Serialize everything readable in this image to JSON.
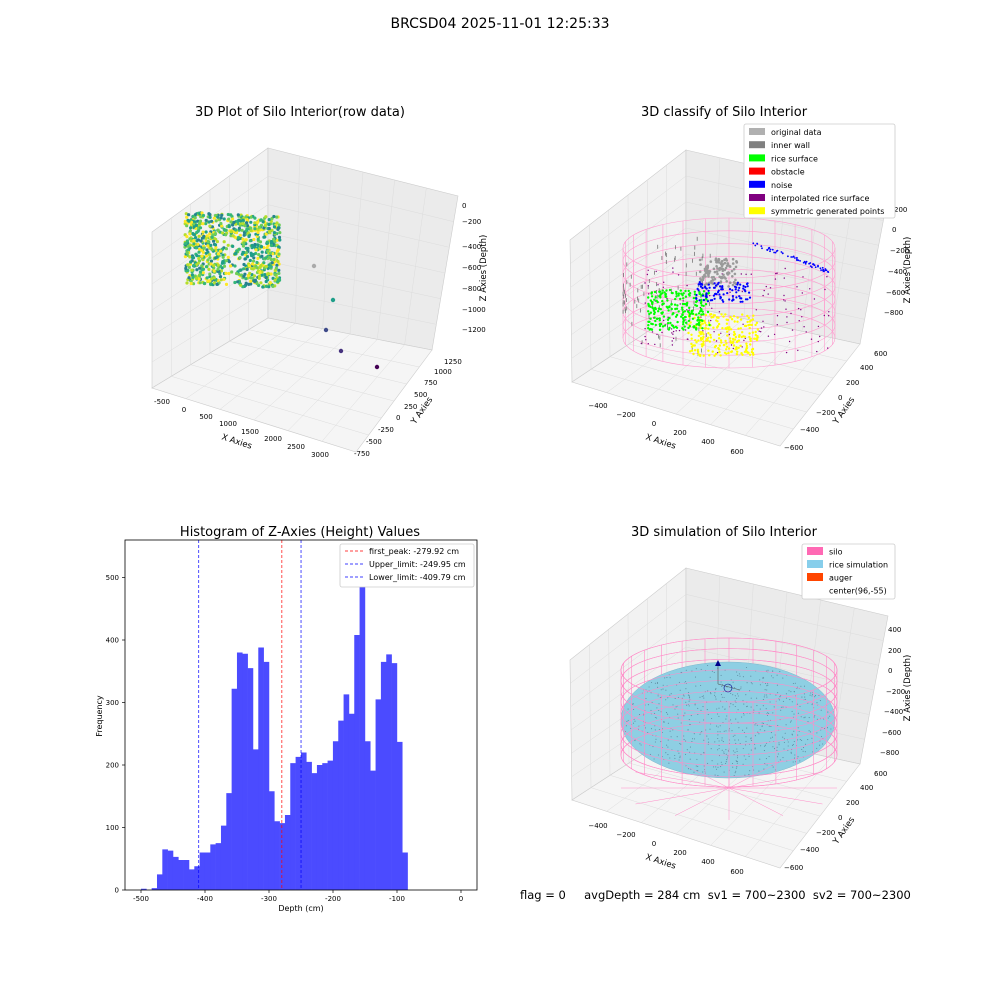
{
  "figure": {
    "suptitle": "BRCSD04 2025-11-01 12:25:33",
    "footer": "flag = 0     avgDepth = 284 cm  sv1 = 700~2300  sv2 = 700~2300"
  },
  "chart_data": [
    {
      "type": "scatter",
      "title": "3D Plot of Silo Interior(row data)",
      "xlabel": "X Axies",
      "ylabel": "Y Axies",
      "zlabel": "Z Axies (Depth)",
      "x_ticks": [
        "-500",
        "0",
        "500",
        "1000",
        "1500",
        "2000",
        "2500",
        "3000"
      ],
      "y_ticks": [
        "-750",
        "-500",
        "-250",
        "0",
        "250",
        "500",
        "750",
        "1000",
        "1250"
      ],
      "z_ticks": [
        "0",
        "−200",
        "−400",
        "−600",
        "−800",
        "−1000",
        "−1200"
      ],
      "colormap": "viridis",
      "outliers_note": "scattered points extend toward x≈3000"
    },
    {
      "type": "scatter",
      "title": "3D classify of Silo Interior",
      "xlabel": "X Axies",
      "ylabel": "Y Axies",
      "zlabel": "Z Axies (Depth)",
      "x_ticks": [
        "−400",
        "−200",
        "0",
        "200",
        "400",
        "600"
      ],
      "y_ticks": [
        "−600",
        "−400",
        "−200",
        "0",
        "200",
        "400",
        "600"
      ],
      "z_ticks": [
        "200",
        "0",
        "−200",
        "−400",
        "−600",
        "−800"
      ],
      "legend": [
        {
          "label": "original data",
          "color": "#b0b0b0"
        },
        {
          "label": "inner wall",
          "color": "#808080"
        },
        {
          "label": "rice surface",
          "color": "#00ff00"
        },
        {
          "label": "obstacle",
          "color": "#ff0000"
        },
        {
          "label": "noise",
          "color": "#0000ff"
        },
        {
          "label": "interpolated rice surface",
          "color": "#800080"
        },
        {
          "label": "symmetric generated points",
          "color": "#ffff00"
        }
      ],
      "wireframe_color": "#ff69b4"
    },
    {
      "type": "bar",
      "title": "Histogram of Z-Axies (Height) Values",
      "xlabel": "Depth (cm)",
      "ylabel": "Frequency",
      "bin_start": -500,
      "bin_width": 8.33,
      "values": [
        2,
        0,
        3,
        25,
        65,
        63,
        53,
        48,
        48,
        33,
        38,
        60,
        60,
        73,
        75,
        103,
        155,
        322,
        380,
        378,
        355,
        225,
        388,
        365,
        158,
        110,
        107,
        120,
        203,
        213,
        220,
        205,
        187,
        200,
        203,
        207,
        238,
        271,
        313,
        282,
        408,
        538,
        238,
        191,
        305,
        365,
        377,
        363,
        237,
        60
      ],
      "xlim": [
        -525,
        25
      ],
      "ylim": [
        0,
        560
      ],
      "x_ticks": [
        -500,
        -400,
        -300,
        -200,
        -100,
        0
      ],
      "y_ticks": [
        0,
        100,
        200,
        300,
        400,
        500
      ],
      "bar_color": "#4b4bff",
      "vlines": [
        {
          "label": "first_peak: -279.92 cm",
          "value": -279.92,
          "color": "#ff0000"
        },
        {
          "label": "Upper_limit: -249.95 cm",
          "value": -249.95,
          "color": "#0000ff"
        },
        {
          "label": "Lower_limit: -409.79 cm",
          "value": -409.79,
          "color": "#0000ff"
        }
      ],
      "legend_position": "top-right"
    },
    {
      "type": "scatter",
      "title": "3D simulation of Silo Interior",
      "xlabel": "X Axies",
      "ylabel": "Y Axies",
      "zlabel": "Z Axies (Depth)",
      "x_ticks": [
        "−400",
        "−200",
        "0",
        "200",
        "400",
        "600"
      ],
      "y_ticks": [
        "−600",
        "−400",
        "−200",
        "0",
        "200",
        "400",
        "600"
      ],
      "z_ticks": [
        "400",
        "200",
        "0",
        "−200",
        "−400",
        "−600",
        "−800"
      ],
      "legend": [
        {
          "label": "silo",
          "color": "#ff69b4"
        },
        {
          "label": "rice simulation",
          "color": "#87ceeb"
        },
        {
          "label": "auger",
          "color": "#ff4500"
        },
        {
          "label": "center(96,-55)",
          "color": "#ffffff"
        }
      ]
    }
  ]
}
